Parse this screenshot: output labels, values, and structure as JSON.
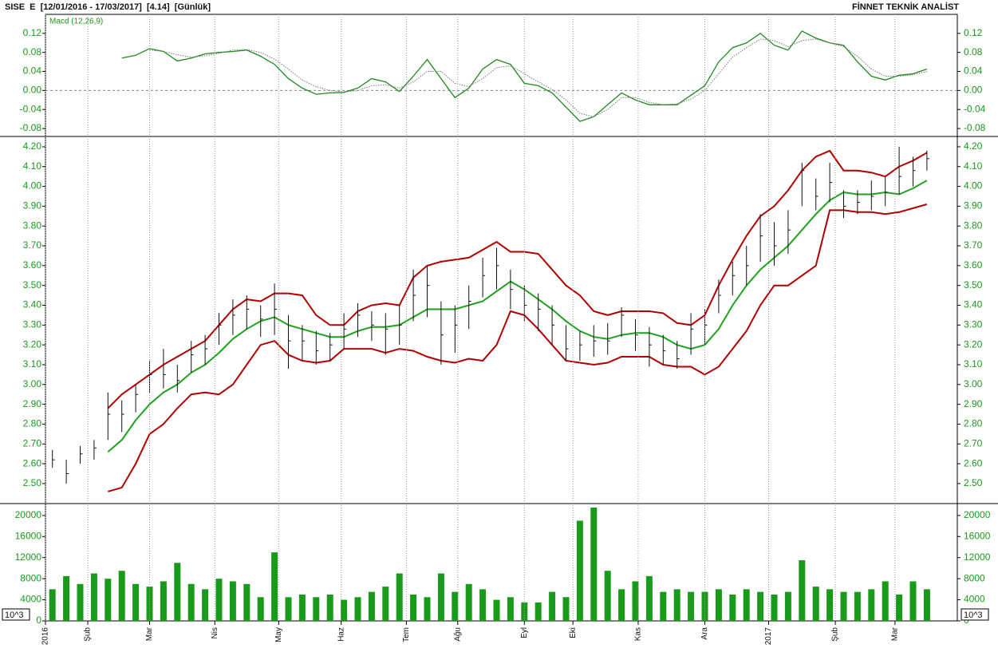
{
  "header": {
    "left": "SISE  E  [12/01/2016 - 17/03/2017]  [4.14]  [Günlük]",
    "right": "FİNNET TEKNİK ANALİST"
  },
  "chart_data": [
    {
      "type": "line",
      "title": "Macd (12,26,9)",
      "ylim": [
        -0.095,
        0.16
      ],
      "yticks": [
        0.12,
        0.08,
        0.04,
        {
          "value": 0,
          "label": "0.00"
        },
        -0.04,
        -0.08
      ],
      "series": [
        {
          "color": "#1f8a1f",
          "values": [
            null,
            null,
            null,
            null,
            null,
            0.068,
            0.074,
            0.088,
            0.082,
            0.062,
            0.068,
            0.077,
            0.08,
            0.082,
            0.085,
            0.072,
            0.055,
            0.025,
            0.005,
            -0.008,
            -0.005,
            -0.004,
            0.005,
            0.025,
            0.018,
            -0.002,
            0.03,
            0.065,
            0.025,
            -0.015,
            0.005,
            0.045,
            0.065,
            0.055,
            0.015,
            0.01,
            -0.005,
            -0.035,
            -0.065,
            -0.055,
            -0.03,
            -0.005,
            -0.02,
            -0.03,
            -0.03,
            -0.03,
            -0.01,
            0.01,
            0.06,
            0.09,
            0.1,
            0.12,
            0.095,
            0.085,
            0.125,
            0.11,
            0.1,
            0.095,
            0.06,
            0.03,
            0.022,
            0.032,
            0.035,
            0.045
          ]
        },
        {
          "color": "#777777",
          "dotted": true,
          "values": [
            null,
            null,
            null,
            null,
            null,
            null,
            null,
            0.085,
            0.082,
            0.075,
            0.07,
            0.073,
            0.078,
            0.085,
            0.086,
            0.08,
            0.066,
            0.045,
            0.022,
            0.008,
            0.0,
            -0.003,
            0.0,
            0.01,
            0.012,
            0.005,
            0.018,
            0.04,
            0.04,
            0.015,
            0.008,
            0.025,
            0.048,
            0.052,
            0.035,
            0.018,
            0.002,
            -0.02,
            -0.048,
            -0.055,
            -0.04,
            -0.015,
            -0.015,
            -0.025,
            -0.03,
            -0.028,
            -0.018,
            0.0,
            0.035,
            0.07,
            0.09,
            0.108,
            0.105,
            0.092,
            0.105,
            0.108,
            0.1,
            0.092,
            0.072,
            0.045,
            0.03,
            0.03,
            0.033,
            0.04
          ]
        }
      ]
    },
    {
      "type": "ohlc",
      "ylim": [
        2.403,
        4.248
      ],
      "color": "#111111",
      "yticks": [
        {
          "value": 4.2,
          "label": "4.20"
        },
        {
          "value": 4.1,
          "label": "4.10"
        },
        {
          "value": 4.0,
          "label": "4.00"
        },
        {
          "value": 3.9,
          "label": "3.90"
        },
        {
          "value": 3.8,
          "label": "3.80"
        },
        {
          "value": 3.7,
          "label": "3.70"
        },
        {
          "value": 3.6,
          "label": "3.60"
        },
        {
          "value": 3.5,
          "label": "3.50"
        },
        {
          "value": 3.4,
          "label": "3.40"
        },
        {
          "value": 3.3,
          "label": "3.30"
        },
        {
          "value": 3.2,
          "label": "3.20"
        },
        {
          "value": 3.1,
          "label": "3.10"
        },
        {
          "value": 3.0,
          "label": "3.00"
        },
        {
          "value": 2.9,
          "label": "2.90"
        },
        {
          "value": 2.8,
          "label": "2.80"
        },
        {
          "value": 2.7,
          "label": "2.70"
        },
        {
          "value": 2.6,
          "label": "2.60"
        },
        {
          "value": 2.5,
          "label": "2.50"
        }
      ],
      "high": [
        2.67,
        2.62,
        2.69,
        2.72,
        2.96,
        2.92,
        3.0,
        3.12,
        3.18,
        3.1,
        3.22,
        3.25,
        3.36,
        3.43,
        3.45,
        3.4,
        3.51,
        3.35,
        3.3,
        3.27,
        3.26,
        3.36,
        3.41,
        3.37,
        3.36,
        3.4,
        3.58,
        3.6,
        3.42,
        3.4,
        3.5,
        3.64,
        3.69,
        3.58,
        3.5,
        3.46,
        3.4,
        3.3,
        3.27,
        3.3,
        3.31,
        3.39,
        3.33,
        3.29,
        3.25,
        3.22,
        3.36,
        3.38,
        3.53,
        3.62,
        3.7,
        3.86,
        3.82,
        3.88,
        4.12,
        4.04,
        4.12,
        3.98,
        3.98,
        4.03,
        4.05,
        4.2,
        4.15,
        4.18
      ],
      "low": [
        2.58,
        2.5,
        2.6,
        2.62,
        2.72,
        2.76,
        2.86,
        2.96,
        2.98,
        2.96,
        3.06,
        3.1,
        3.2,
        3.25,
        3.28,
        3.24,
        3.25,
        3.08,
        3.12,
        3.1,
        3.12,
        3.18,
        3.24,
        3.22,
        3.15,
        3.2,
        3.32,
        3.34,
        3.1,
        3.16,
        3.28,
        3.44,
        3.48,
        3.38,
        3.32,
        3.27,
        3.2,
        3.12,
        3.12,
        3.14,
        3.15,
        3.24,
        3.17,
        3.09,
        3.1,
        3.08,
        3.15,
        3.2,
        3.36,
        3.45,
        3.5,
        3.62,
        3.6,
        3.66,
        3.9,
        3.88,
        3.92,
        3.84,
        3.86,
        3.88,
        3.9,
        3.96,
        4.0,
        4.08
      ],
      "close": [
        2.62,
        2.55,
        2.65,
        2.68,
        2.85,
        2.85,
        2.95,
        3.05,
        3.05,
        3.02,
        3.15,
        3.18,
        3.3,
        3.35,
        3.38,
        3.33,
        3.38,
        3.22,
        3.22,
        3.17,
        3.2,
        3.28,
        3.35,
        3.3,
        3.28,
        3.3,
        3.45,
        3.5,
        3.25,
        3.3,
        3.42,
        3.55,
        3.6,
        3.48,
        3.4,
        3.38,
        3.3,
        3.18,
        3.2,
        3.22,
        3.22,
        3.35,
        3.25,
        3.2,
        3.17,
        3.13,
        3.28,
        3.3,
        3.45,
        3.55,
        3.6,
        3.75,
        3.7,
        3.78,
        4.08,
        3.95,
        4.02,
        3.9,
        3.92,
        3.95,
        3.97,
        4.05,
        4.08,
        4.14
      ],
      "bands": [
        {
          "color": "#b00000",
          "values": [
            null,
            null,
            null,
            null,
            2.88,
            2.95,
            3.0,
            3.05,
            3.1,
            3.14,
            3.18,
            3.22,
            3.3,
            3.38,
            3.43,
            3.42,
            3.46,
            3.46,
            3.45,
            3.35,
            3.3,
            3.3,
            3.37,
            3.4,
            3.41,
            3.4,
            3.54,
            3.6,
            3.62,
            3.63,
            3.64,
            3.68,
            3.72,
            3.67,
            3.67,
            3.66,
            3.58,
            3.5,
            3.45,
            3.37,
            3.35,
            3.37,
            3.37,
            3.37,
            3.36,
            3.31,
            3.3,
            3.35,
            3.5,
            3.63,
            3.75,
            3.85,
            3.9,
            3.98,
            4.08,
            4.15,
            4.18,
            4.08,
            4.08,
            4.07,
            4.05,
            4.1,
            4.13,
            4.17
          ]
        },
        {
          "color": "#1fa21f",
          "values": [
            null,
            null,
            null,
            null,
            2.66,
            2.72,
            2.82,
            2.9,
            2.96,
            3.0,
            3.06,
            3.1,
            3.16,
            3.23,
            3.28,
            3.32,
            3.34,
            3.3,
            3.28,
            3.26,
            3.24,
            3.24,
            3.27,
            3.29,
            3.29,
            3.3,
            3.34,
            3.38,
            3.38,
            3.38,
            3.4,
            3.42,
            3.47,
            3.52,
            3.48,
            3.43,
            3.38,
            3.32,
            3.27,
            3.24,
            3.23,
            3.25,
            3.26,
            3.26,
            3.24,
            3.2,
            3.18,
            3.2,
            3.28,
            3.4,
            3.5,
            3.58,
            3.64,
            3.7,
            3.78,
            3.86,
            3.93,
            3.97,
            3.96,
            3.96,
            3.97,
            3.96,
            3.99,
            4.03
          ]
        },
        {
          "color": "#b00000",
          "values": [
            null,
            null,
            null,
            null,
            2.46,
            2.48,
            2.6,
            2.75,
            2.8,
            2.88,
            2.95,
            2.96,
            2.95,
            3.0,
            3.1,
            3.2,
            3.22,
            3.15,
            3.12,
            3.11,
            3.12,
            3.18,
            3.18,
            3.18,
            3.16,
            3.18,
            3.17,
            3.14,
            3.12,
            3.11,
            3.13,
            3.12,
            3.2,
            3.37,
            3.35,
            3.28,
            3.2,
            3.12,
            3.11,
            3.1,
            3.11,
            3.14,
            3.14,
            3.14,
            3.1,
            3.09,
            3.09,
            3.05,
            3.09,
            3.18,
            3.27,
            3.4,
            3.5,
            3.5,
            3.55,
            3.6,
            3.88,
            3.88,
            3.87,
            3.87,
            3.86,
            3.87,
            3.89,
            3.91
          ]
        }
      ]
    },
    {
      "type": "bar",
      "ylim": [
        0,
        22100
      ],
      "color": "#1a9a1a",
      "units_label": "10^3",
      "yticks": [
        20000,
        16000,
        12000,
        8000,
        4000,
        0
      ],
      "values": [
        6000,
        8500,
        7000,
        9000,
        8000,
        9500,
        7000,
        6500,
        7500,
        11000,
        7000,
        6000,
        8000,
        7500,
        7000,
        4500,
        13000,
        4500,
        5000,
        4500,
        5000,
        4000,
        4500,
        5500,
        6500,
        9000,
        5000,
        4500,
        9000,
        5500,
        7000,
        6000,
        4000,
        4500,
        3500,
        3500,
        5500,
        4500,
        19000,
        21500,
        9500,
        6000,
        7500,
        8500,
        5500,
        6000,
        5500,
        5500,
        6000,
        5000,
        6000,
        5500,
        5000,
        5500,
        11500,
        6500,
        6000,
        5500,
        5500,
        6000,
        7500,
        5000,
        7500,
        6000
      ],
      "xticks": [
        {
          "value": 0,
          "label": "2016"
        },
        {
          "value": 3.05,
          "label": "Şub"
        },
        {
          "value": 7.5,
          "label": "Mar"
        },
        {
          "value": 12.2,
          "label": "Nis"
        },
        {
          "value": 16.8,
          "label": "May"
        },
        {
          "value": 21.3,
          "label": "Haz"
        },
        {
          "value": 26.0,
          "label": "Tem"
        },
        {
          "value": 29.7,
          "label": "Ağu"
        },
        {
          "value": 34.5,
          "label": "Eyl"
        },
        {
          "value": 38.0,
          "label": "Eki"
        },
        {
          "value": 42.7,
          "label": "Kas"
        },
        {
          "value": 47.5,
          "label": "Ara"
        },
        {
          "value": 52.1,
          "label": "2017"
        },
        {
          "value": 56.9,
          "label": "Şub"
        },
        {
          "value": 61.2,
          "label": "Mar"
        }
      ]
    }
  ]
}
